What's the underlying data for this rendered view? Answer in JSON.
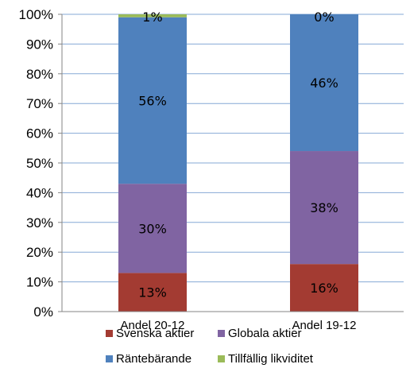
{
  "chart_data": {
    "type": "bar",
    "stacked": true,
    "categories": [
      "Andel 20-12",
      "Andel 19-12"
    ],
    "series": [
      {
        "name": "Svenska aktier",
        "values": [
          13,
          16
        ],
        "labels": [
          "13%",
          "16%"
        ],
        "color": "#a33b32"
      },
      {
        "name": "Globala aktier",
        "values": [
          30,
          38
        ],
        "labels": [
          "30%",
          "38%"
        ],
        "color": "#8064a2"
      },
      {
        "name": "Räntebärande",
        "values": [
          56,
          46
        ],
        "labels": [
          "56%",
          "46%"
        ],
        "color": "#4f81bd"
      },
      {
        "name": "Tillfällig likviditet",
        "values": [
          1,
          0
        ],
        "labels": [
          "1%",
          "0%"
        ],
        "color": "#9bbb59"
      }
    ],
    "ylim": [
      0,
      100
    ],
    "yticks": [
      "0%",
      "10%",
      "20%",
      "30%",
      "40%",
      "50%",
      "60%",
      "70%",
      "80%",
      "90%",
      "100%"
    ],
    "grid": true,
    "legend": "bottom"
  }
}
